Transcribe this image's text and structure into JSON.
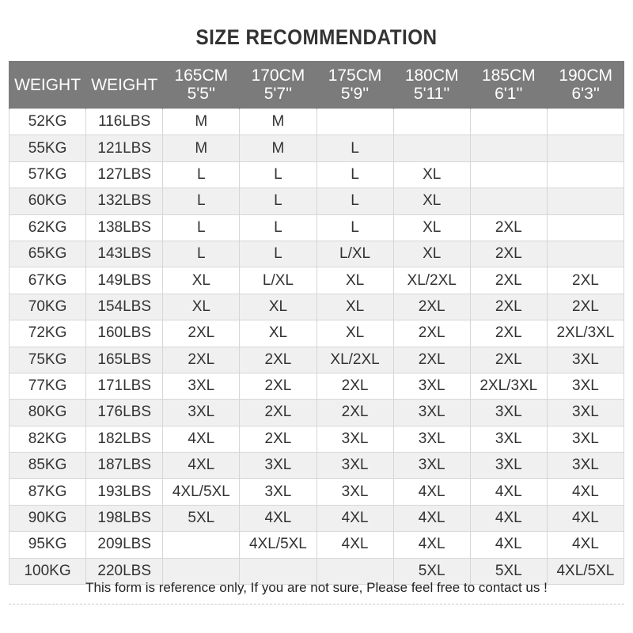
{
  "title": "SIZE RECOMMENDATION",
  "headers": [
    {
      "l1": "WEIGHT",
      "l2": ""
    },
    {
      "l1": "WEIGHT",
      "l2": ""
    },
    {
      "l1": "165CM",
      "l2": "5'5''"
    },
    {
      "l1": "170CM",
      "l2": "5'7''"
    },
    {
      "l1": "175CM",
      "l2": "5'9''"
    },
    {
      "l1": "180CM",
      "l2": "5'11''"
    },
    {
      "l1": "185CM",
      "l2": "6'1''"
    },
    {
      "l1": "190CM",
      "l2": "6'3''"
    }
  ],
  "rows": [
    [
      "52KG",
      "116LBS",
      "M",
      "M",
      "",
      "",
      "",
      ""
    ],
    [
      "55KG",
      "121LBS",
      "M",
      "M",
      "L",
      "",
      "",
      ""
    ],
    [
      "57KG",
      "127LBS",
      "L",
      "L",
      "L",
      "XL",
      "",
      ""
    ],
    [
      "60KG",
      "132LBS",
      "L",
      "L",
      "L",
      "XL",
      "",
      ""
    ],
    [
      "62KG",
      "138LBS",
      "L",
      "L",
      "L",
      "XL",
      "2XL",
      ""
    ],
    [
      "65KG",
      "143LBS",
      "L",
      "L",
      "L/XL",
      "XL",
      "2XL",
      ""
    ],
    [
      "67KG",
      "149LBS",
      "XL",
      "L/XL",
      "XL",
      "XL/2XL",
      "2XL",
      "2XL"
    ],
    [
      "70KG",
      "154LBS",
      "XL",
      "XL",
      "XL",
      "2XL",
      "2XL",
      "2XL"
    ],
    [
      "72KG",
      "160LBS",
      "2XL",
      "XL",
      "XL",
      "2XL",
      "2XL",
      "2XL/3XL"
    ],
    [
      "75KG",
      "165LBS",
      "2XL",
      "2XL",
      "XL/2XL",
      "2XL",
      "2XL",
      "3XL"
    ],
    [
      "77KG",
      "171LBS",
      "3XL",
      "2XL",
      "2XL",
      "3XL",
      "2XL/3XL",
      "3XL"
    ],
    [
      "80KG",
      "176LBS",
      "3XL",
      "2XL",
      "2XL",
      "3XL",
      "3XL",
      "3XL"
    ],
    [
      "82KG",
      "182LBS",
      "4XL",
      "2XL",
      "3XL",
      "3XL",
      "3XL",
      "3XL"
    ],
    [
      "85KG",
      "187LBS",
      "4XL",
      "3XL",
      "3XL",
      "3XL",
      "3XL",
      "3XL"
    ],
    [
      "87KG",
      "193LBS",
      "4XL/5XL",
      "3XL",
      "3XL",
      "4XL",
      "4XL",
      "4XL"
    ],
    [
      "90KG",
      "198LBS",
      "5XL",
      "4XL",
      "4XL",
      "4XL",
      "4XL",
      "4XL"
    ],
    [
      "95KG",
      "209LBS",
      "",
      "4XL/5XL",
      "4XL",
      "4XL",
      "4XL",
      "4XL"
    ],
    [
      "100KG",
      "220LBS",
      "",
      "",
      "",
      "5XL",
      "5XL",
      "4XL/5XL"
    ]
  ],
  "footer": "This form is reference only, If you are not sure, Please feel free to contact us !",
  "colors": {
    "header_bg": "#7b7b7b",
    "alt_row": "#f0f0f0"
  }
}
